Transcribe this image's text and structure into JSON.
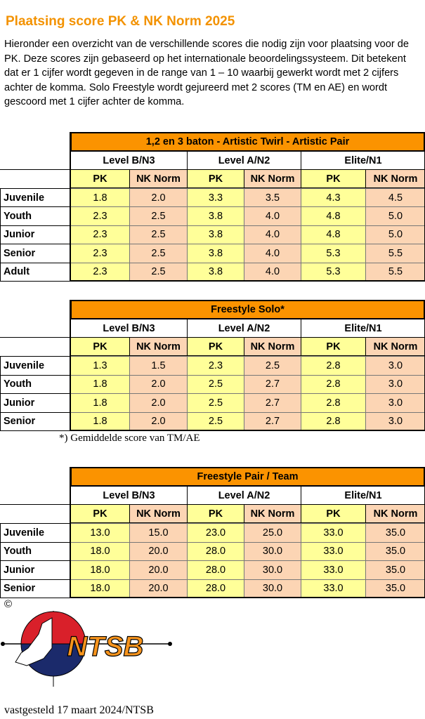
{
  "title": "Plaatsing score PK & NK Norm 2025",
  "intro": "Hieronder een overzicht van de verschillende scores die nodig zijn voor plaatsing voor de PK. Deze scores zijn gebaseerd op het internationale beoordelingssysteem. Dit betekent dat er 1 cijfer wordt gegeven in de range van 1 – 10 waarbij gewerkt wordt met 2 cijfers achter de komma. Solo Freestyle wordt gejureerd met 2 scores (TM en AE) en wordt gescoord met 1 cijfer achter de komma.",
  "colors": {
    "header_orange": "#fb9300",
    "pk_yellow": "#ffff99",
    "nk_peach": "#fcd5b4",
    "title_orange": "#f39200"
  },
  "tables": [
    {
      "title": "1,2 en 3 baton - Artistic Twirl - Artistic Pair",
      "levels": [
        "Level B/N3",
        "Level A/N2",
        "Elite/N1"
      ],
      "columns": [
        "PK",
        "NK Norm",
        "PK",
        "NK Norm",
        "PK",
        "NK Norm"
      ],
      "rows": [
        {
          "label": "Juvenile",
          "values": [
            "1.8",
            "2.0",
            "3.3",
            "3.5",
            "4.3",
            "4.5"
          ]
        },
        {
          "label": "Youth",
          "values": [
            "2.3",
            "2.5",
            "3.8",
            "4.0",
            "4.8",
            "5.0"
          ]
        },
        {
          "label": "Junior",
          "values": [
            "2.3",
            "2.5",
            "3.8",
            "4.0",
            "4.8",
            "5.0"
          ]
        },
        {
          "label": "Senior",
          "values": [
            "2.3",
            "2.5",
            "3.8",
            "4.0",
            "5.3",
            "5.5"
          ]
        },
        {
          "label": "Adult",
          "values": [
            "2.3",
            "2.5",
            "3.8",
            "4.0",
            "5.3",
            "5.5"
          ]
        }
      ]
    },
    {
      "title": "Freestyle Solo*",
      "levels": [
        "Level B/N3",
        "Level A/N2",
        "Elite/N1"
      ],
      "columns": [
        "PK",
        "NK Norm",
        "PK",
        "NK Norm",
        "PK",
        "NK Norm"
      ],
      "rows": [
        {
          "label": "Juvenile",
          "values": [
            "1.3",
            "1.5",
            "2.3",
            "2.5",
            "2.8",
            "3.0"
          ]
        },
        {
          "label": "Youth",
          "values": [
            "1.8",
            "2.0",
            "2.5",
            "2.7",
            "2.8",
            "3.0"
          ]
        },
        {
          "label": "Junior",
          "values": [
            "1.8",
            "2.0",
            "2.5",
            "2.7",
            "2.8",
            "3.0"
          ]
        },
        {
          "label": "Senior",
          "values": [
            "1.8",
            "2.0",
            "2.5",
            "2.7",
            "2.8",
            "3.0"
          ]
        }
      ]
    },
    {
      "title": "Freestyle Pair / Team",
      "levels": [
        "Level B/N3",
        "Level A/N2",
        "Elite/N1"
      ],
      "columns": [
        "PK",
        "NK Norm",
        "PK",
        "NK Norm",
        "PK",
        "NK Norm"
      ],
      "rows": [
        {
          "label": "Juvenile",
          "values": [
            "13.0",
            "15.0",
            "23.0",
            "25.0",
            "33.0",
            "35.0"
          ]
        },
        {
          "label": "Youth",
          "values": [
            "18.0",
            "20.0",
            "28.0",
            "30.0",
            "33.0",
            "35.0"
          ]
        },
        {
          "label": "Junior",
          "values": [
            "18.0",
            "20.0",
            "28.0",
            "30.0",
            "33.0",
            "35.0"
          ]
        },
        {
          "label": "Senior",
          "values": [
            "18.0",
            "20.0",
            "28.0",
            "30.0",
            "33.0",
            "35.0"
          ]
        }
      ]
    }
  ],
  "footnote": "*)  Gemiddelde score van TM/AE",
  "copyright": "©",
  "logo_text": "NTSB",
  "footer": "vastgesteld 17 maart 2024/NTSB"
}
